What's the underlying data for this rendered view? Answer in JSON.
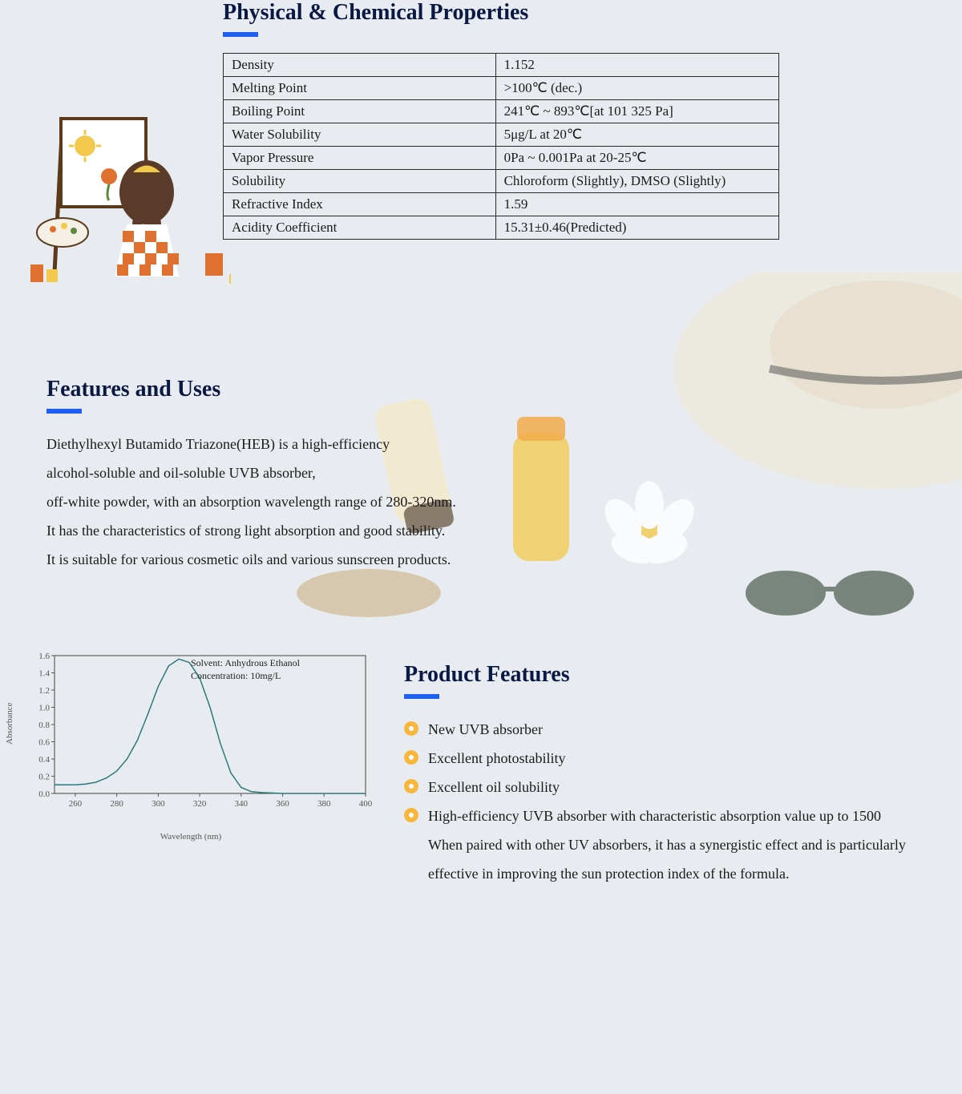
{
  "section1": {
    "title": "Physical & Chemical Properties",
    "rows": [
      {
        "k": "Density",
        "v": "1.152"
      },
      {
        "k": "Melting Point",
        "v": ">100℃ (dec.)"
      },
      {
        "k": "Boiling Point",
        "v": "241℃ ~ 893℃[at 101 325 Pa]"
      },
      {
        "k": "Water Solubility",
        "v": "5μg/L at 20℃"
      },
      {
        "k": "Vapor Pressure",
        "v": "0Pa ~ 0.001Pa at 20-25℃"
      },
      {
        "k": "Solubility",
        "v": "Chloroform (Slightly), DMSO (Slightly)"
      },
      {
        "k": "Refractive Index",
        "v": "1.59"
      },
      {
        "k": "Acidity Coefficient",
        "v": "15.31±0.46(Predicted)"
      }
    ]
  },
  "section2": {
    "title": "Features and Uses",
    "lines": [
      "Diethylhexyl Butamido Triazone(HEB) is a high-efficiency",
      "alcohol-soluble and oil-soluble UVB absorber,",
      "off-white powder, with an absorption wavelength range of 280-320nm.",
      "It has the characteristics of strong light absorption and good stability.",
      " It is suitable for various cosmetic oils and various sunscreen products."
    ]
  },
  "chart": {
    "type": "line",
    "solvent_label": "Solvent:  Anhydrous Ethanol",
    "concentration_label": "Concentration: 10mg/L",
    "xlabel": "Wavelength (nm)",
    "ylabel": "Absorbance",
    "xlim": [
      250,
      400
    ],
    "ylim": [
      0.0,
      1.6
    ],
    "xtick_step": 20,
    "ytick_step": 0.2,
    "xticks": [
      260,
      280,
      300,
      320,
      340,
      360,
      380,
      400
    ],
    "yticks": [
      0.0,
      0.2,
      0.4,
      0.6,
      0.8,
      1.0,
      1.2,
      1.4,
      1.6
    ],
    "line_color": "#2a7a7a",
    "line_width": 1.5,
    "border_color": "#444444",
    "tick_color": "#555555",
    "tick_fontsize": 11,
    "background_color": "#e8ecf1",
    "data": {
      "x": [
        250,
        255,
        260,
        265,
        270,
        275,
        280,
        285,
        290,
        295,
        300,
        305,
        310,
        315,
        320,
        325,
        330,
        335,
        340,
        345,
        350,
        360,
        380,
        400
      ],
      "y": [
        0.1,
        0.1,
        0.1,
        0.11,
        0.13,
        0.18,
        0.26,
        0.4,
        0.62,
        0.92,
        1.24,
        1.48,
        1.56,
        1.52,
        1.34,
        1.0,
        0.58,
        0.24,
        0.07,
        0.02,
        0.01,
        0.0,
        0.0,
        0.0
      ]
    }
  },
  "section3": {
    "title": "Product Features",
    "items": [
      {
        "text": "New UVB absorber",
        "bullet": true
      },
      {
        "text": "Excellent photostability",
        "bullet": true
      },
      {
        "text": "Excellent oil solubility",
        "bullet": true
      },
      {
        "text": "High-efficiency UVB absorber with characteristic absorption value up to 1500",
        "bullet": true
      },
      {
        "text": "When paired with other UV absorbers, it has a synergistic effect and is particularly effective in improving the sun protection index of the formula.",
        "bullet": false
      }
    ]
  },
  "colors": {
    "heading": "#0a1844",
    "accent_bar": "#1e5ef0",
    "body_text": "#1a1a1a",
    "page_bg": "#e8ecf1",
    "table_border": "#2a2a2a",
    "bullet": "#f6b73c"
  }
}
